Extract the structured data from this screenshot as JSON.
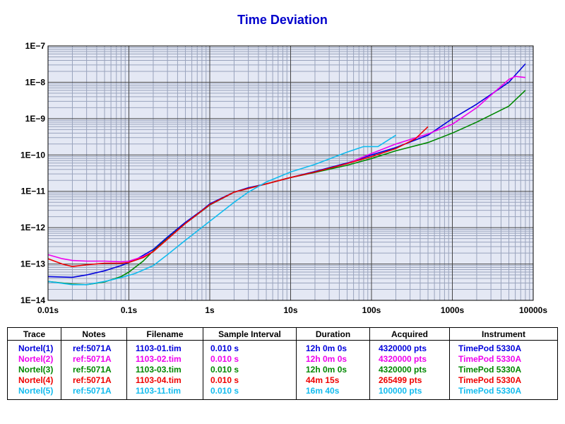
{
  "chart_data": {
    "type": "line",
    "title": "Time Deviation",
    "x_scale": "log",
    "y_scale": "log",
    "xlim": [
      0.01,
      10000
    ],
    "ylim": [
      1e-14,
      1e-07
    ],
    "x_tick_labels": [
      "0.01s",
      "0.1s",
      "1s",
      "10s",
      "100s",
      "1000s",
      "10000s"
    ],
    "y_tick_labels": [
      "1E−14",
      "1E−13",
      "1E−12",
      "1E−11",
      "1E−10",
      "1E−9",
      "1E−8",
      "1E−7"
    ],
    "grid": true,
    "series": [
      {
        "name": "Nortel(1)",
        "color": "#0000dd",
        "points": [
          [
            0.01,
            4.5e-14
          ],
          [
            0.02,
            4.3e-14
          ],
          [
            0.03,
            5e-14
          ],
          [
            0.05,
            6.5e-14
          ],
          [
            0.08,
            9e-14
          ],
          [
            0.12,
            1.3e-13
          ],
          [
            0.2,
            2.5e-13
          ],
          [
            0.3,
            5.5e-13
          ],
          [
            0.5,
            1.4e-12
          ],
          [
            0.8,
            3e-12
          ],
          [
            1,
            4.5e-12
          ],
          [
            1.5,
            7e-12
          ],
          [
            2,
            9.5e-12
          ],
          [
            3,
            1.25e-11
          ],
          [
            5,
            1.6e-11
          ],
          [
            10,
            2.4e-11
          ],
          [
            20,
            3.5e-11
          ],
          [
            50,
            6e-11
          ],
          [
            100,
            1e-10
          ],
          [
            200,
            1.6e-10
          ],
          [
            500,
            3.5e-10
          ],
          [
            1000,
            1e-09
          ],
          [
            2000,
            2.5e-09
          ],
          [
            5000,
            1e-08
          ],
          [
            8000,
            3.2e-08
          ]
        ]
      },
      {
        "name": "Nortel(2)",
        "color": "#ee00ee",
        "points": [
          [
            0.01,
            1.8e-13
          ],
          [
            0.015,
            1.4e-13
          ],
          [
            0.02,
            1.25e-13
          ],
          [
            0.03,
            1.2e-13
          ],
          [
            0.05,
            1.2e-13
          ],
          [
            0.08,
            1.15e-13
          ],
          [
            0.1,
            1.2e-13
          ],
          [
            0.15,
            1.6e-13
          ],
          [
            0.2,
            2.2e-13
          ],
          [
            0.3,
            4.8e-13
          ],
          [
            0.5,
            1.3e-12
          ],
          [
            1,
            4.2e-12
          ],
          [
            2,
            9.5e-12
          ],
          [
            5,
            1.6e-11
          ],
          [
            10,
            2.4e-11
          ],
          [
            20,
            3.3e-11
          ],
          [
            50,
            5.8e-11
          ],
          [
            100,
            1.1e-10
          ],
          [
            200,
            2e-10
          ],
          [
            500,
            3.8e-10
          ],
          [
            1000,
            7e-10
          ],
          [
            2000,
            2e-09
          ],
          [
            5000,
            1.2e-08
          ],
          [
            6000,
            1.45e-08
          ],
          [
            8000,
            1.35e-08
          ]
        ]
      },
      {
        "name": "Nortel(3)",
        "color": "#008800",
        "points": [
          [
            0.01,
            3.3e-14
          ],
          [
            0.02,
            2.8e-14
          ],
          [
            0.03,
            2.7e-14
          ],
          [
            0.05,
            3.2e-14
          ],
          [
            0.08,
            4.5e-14
          ],
          [
            0.1,
            6e-14
          ],
          [
            0.15,
            1.2e-13
          ],
          [
            0.2,
            2.3e-13
          ],
          [
            0.3,
            5e-13
          ],
          [
            0.5,
            1.3e-12
          ],
          [
            1,
            4.2e-12
          ],
          [
            2,
            9.5e-12
          ],
          [
            5,
            1.6e-11
          ],
          [
            10,
            2.4e-11
          ],
          [
            20,
            3.3e-11
          ],
          [
            50,
            5.2e-11
          ],
          [
            100,
            8e-11
          ],
          [
            200,
            1.3e-10
          ],
          [
            500,
            2.2e-10
          ],
          [
            1000,
            4e-10
          ],
          [
            2000,
            8e-10
          ],
          [
            5000,
            2.2e-09
          ],
          [
            8000,
            6e-09
          ]
        ]
      },
      {
        "name": "Nortel(4)",
        "color": "#ee0000",
        "points": [
          [
            0.01,
            1.4e-13
          ],
          [
            0.015,
            1e-13
          ],
          [
            0.02,
            8.5e-14
          ],
          [
            0.03,
            9.5e-14
          ],
          [
            0.05,
            1.05e-13
          ],
          [
            0.08,
            1.05e-13
          ],
          [
            0.1,
            1.1e-13
          ],
          [
            0.15,
            1.5e-13
          ],
          [
            0.2,
            2.2e-13
          ],
          [
            0.3,
            4.8e-13
          ],
          [
            0.5,
            1.3e-12
          ],
          [
            1,
            4.3e-12
          ],
          [
            2,
            9.5e-12
          ],
          [
            5,
            1.6e-11
          ],
          [
            10,
            2.4e-11
          ],
          [
            20,
            3.4e-11
          ],
          [
            50,
            5.8e-11
          ],
          [
            100,
            9e-11
          ],
          [
            200,
            1.5e-10
          ],
          [
            350,
            2.8e-10
          ],
          [
            500,
            6e-10
          ]
        ]
      },
      {
        "name": "Nortel(5)",
        "color": "#11bbee",
        "points": [
          [
            0.01,
            3.3e-14
          ],
          [
            0.02,
            2.7e-14
          ],
          [
            0.03,
            2.7e-14
          ],
          [
            0.05,
            3.3e-14
          ],
          [
            0.08,
            4.2e-14
          ],
          [
            0.12,
            5.5e-14
          ],
          [
            0.2,
            9e-14
          ],
          [
            0.3,
            1.8e-13
          ],
          [
            0.5,
            4.5e-13
          ],
          [
            1,
            1.5e-12
          ],
          [
            2,
            5e-12
          ],
          [
            3,
            9.5e-12
          ],
          [
            5,
            1.8e-11
          ],
          [
            10,
            3.4e-11
          ],
          [
            20,
            5.5e-11
          ],
          [
            50,
            1.2e-10
          ],
          [
            80,
            1.7e-10
          ],
          [
            120,
            1.7e-10
          ],
          [
            200,
            3.5e-10
          ]
        ]
      }
    ]
  },
  "legend_table": {
    "headers": [
      "Trace",
      "Notes",
      "Filename",
      "Sample Interval",
      "Duration",
      "Acquired",
      "Instrument"
    ],
    "rows": [
      {
        "color": "#0000dd",
        "trace": "Nortel(1)",
        "notes": "ref:5071A",
        "filename": "1103-01.tim",
        "interval": "0.010 s",
        "duration": "12h 0m 0s",
        "acquired": "4320000 pts",
        "instrument": "TimePod 5330A"
      },
      {
        "color": "#ee00ee",
        "trace": "Nortel(2)",
        "notes": "ref:5071A",
        "filename": "1103-02.tim",
        "interval": "0.010 s",
        "duration": "12h 0m 0s",
        "acquired": "4320000 pts",
        "instrument": "TimePod 5330A"
      },
      {
        "color": "#008800",
        "trace": "Nortel(3)",
        "notes": "ref:5071A",
        "filename": "1103-03.tim",
        "interval": "0.010 s",
        "duration": "12h 0m 0s",
        "acquired": "4320000 pts",
        "instrument": "TimePod 5330A"
      },
      {
        "color": "#ee0000",
        "trace": "Nortel(4)",
        "notes": "ref:5071A",
        "filename": "1103-04.tim",
        "interval": "0.010 s",
        "duration": "44m 15s",
        "acquired": "265499 pts",
        "instrument": "TimePod 5330A"
      },
      {
        "color": "#11bbee",
        "trace": "Nortel(5)",
        "notes": "ref:5071A",
        "filename": "1103-11.tim",
        "interval": "0.010 s",
        "duration": "16m 40s",
        "acquired": "100000 pts",
        "instrument": "TimePod 5330A"
      }
    ]
  }
}
